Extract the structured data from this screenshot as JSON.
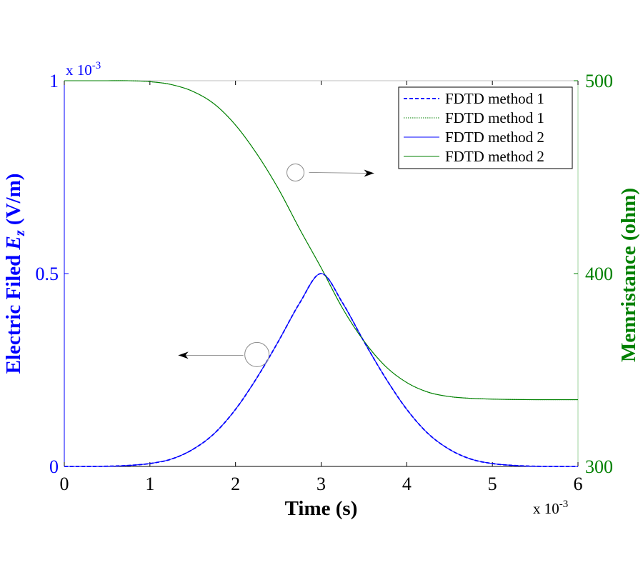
{
  "chart_data": {
    "type": "line",
    "xlabel": "Time (s)",
    "x_multiplier": "x 10^-3",
    "xlim": [
      0,
      6
    ],
    "xticks": [
      0,
      1,
      2,
      3,
      4,
      5,
      6
    ],
    "y_left": {
      "label": "Electric Filed E_z (V/m)",
      "label_parts": [
        "Electric Filed ",
        "E",
        "z",
        " (V/m)"
      ],
      "multiplier": "x 10^-3",
      "lim": [
        0,
        1
      ],
      "ticks": [
        0,
        0.5,
        1
      ],
      "color": "#0000ff"
    },
    "y_right": {
      "label": "Memristance (ohm)",
      "lim": [
        300,
        500
      ],
      "ticks": [
        300,
        400,
        500
      ],
      "color": "#008000"
    },
    "series": [
      {
        "name": "FDTD method 1",
        "axis": "left",
        "color": "#0000ff",
        "style": "dashed",
        "x": [
          0,
          0.25,
          0.5,
          0.75,
          1.0,
          1.25,
          1.5,
          1.75,
          2.0,
          2.25,
          2.5,
          2.75,
          3.0,
          3.25,
          3.5,
          3.75,
          4.0,
          4.25,
          4.5,
          4.75,
          5.0,
          5.25,
          5.5,
          5.75,
          6.0
        ],
        "y": [
          0.0,
          5e-05,
          0.0005,
          0.0025,
          0.0075,
          0.019,
          0.044,
          0.085,
          0.148,
          0.23,
          0.324,
          0.424,
          0.5,
          0.424,
          0.324,
          0.23,
          0.148,
          0.085,
          0.044,
          0.019,
          0.0075,
          0.0025,
          0.0005,
          5e-05,
          0.0
        ]
      },
      {
        "name": "FDTD method 1",
        "axis": "right",
        "color": "#008000",
        "style": "dotted",
        "x": [
          0,
          0.25,
          0.5,
          0.75,
          1.0,
          1.25,
          1.5,
          1.75,
          2.0,
          2.25,
          2.5,
          2.75,
          3.0,
          3.25,
          3.5,
          3.75,
          4.0,
          4.25,
          4.5,
          4.75,
          5.0,
          5.25,
          5.5,
          5.75,
          6.0
        ],
        "y": [
          500.0,
          500.0,
          500.0,
          500.0,
          499.5,
          498.0,
          494.5,
          488.0,
          477.0,
          462.0,
          444.0,
          423.0,
          403.0,
          382.0,
          365.0,
          352.0,
          343.5,
          338.5,
          336.2,
          335.3,
          334.9,
          334.7,
          334.6,
          334.6,
          334.6
        ]
      },
      {
        "name": "FDTD method 2",
        "axis": "left",
        "color": "#0000ff",
        "style": "solid",
        "x": [
          0,
          0.25,
          0.5,
          0.75,
          1.0,
          1.25,
          1.5,
          1.75,
          2.0,
          2.25,
          2.5,
          2.75,
          3.0,
          3.25,
          3.5,
          3.75,
          4.0,
          4.25,
          4.5,
          4.75,
          5.0,
          5.25,
          5.5,
          5.75,
          6.0
        ],
        "y": [
          0.0,
          5e-05,
          0.0005,
          0.0025,
          0.0075,
          0.019,
          0.044,
          0.085,
          0.148,
          0.23,
          0.324,
          0.424,
          0.5,
          0.424,
          0.324,
          0.23,
          0.148,
          0.085,
          0.044,
          0.019,
          0.0075,
          0.0025,
          0.0005,
          5e-05,
          0.0
        ]
      },
      {
        "name": "FDTD method 2",
        "axis": "right",
        "color": "#008000",
        "style": "solid",
        "x": [
          0,
          0.25,
          0.5,
          0.75,
          1.0,
          1.25,
          1.5,
          1.75,
          2.0,
          2.25,
          2.5,
          2.75,
          3.0,
          3.25,
          3.5,
          3.75,
          4.0,
          4.25,
          4.5,
          4.75,
          5.0,
          5.25,
          5.5,
          5.75,
          6.0
        ],
        "y": [
          500.0,
          500.0,
          500.0,
          500.0,
          499.5,
          498.0,
          494.5,
          488.0,
          477.0,
          462.0,
          444.0,
          423.0,
          403.0,
          382.0,
          365.0,
          352.0,
          343.5,
          338.5,
          336.2,
          335.3,
          334.9,
          334.7,
          334.6,
          334.6,
          334.6
        ]
      }
    ],
    "legend": {
      "placement": "top-right",
      "entries": [
        "FDTD method 1",
        "FDTD method 1",
        "FDTD method 2",
        "FDTD method 2"
      ]
    },
    "annotations": [
      {
        "marker": "circle",
        "at_x": 2.7,
        "at_y": 0.762,
        "arrow_direction": "right",
        "meaning": "right axis curve"
      },
      {
        "marker": "circle",
        "at_x": 2.25,
        "at_y": 0.29,
        "arrow_direction": "left",
        "meaning": "left axis curve"
      }
    ],
    "grid": false
  }
}
